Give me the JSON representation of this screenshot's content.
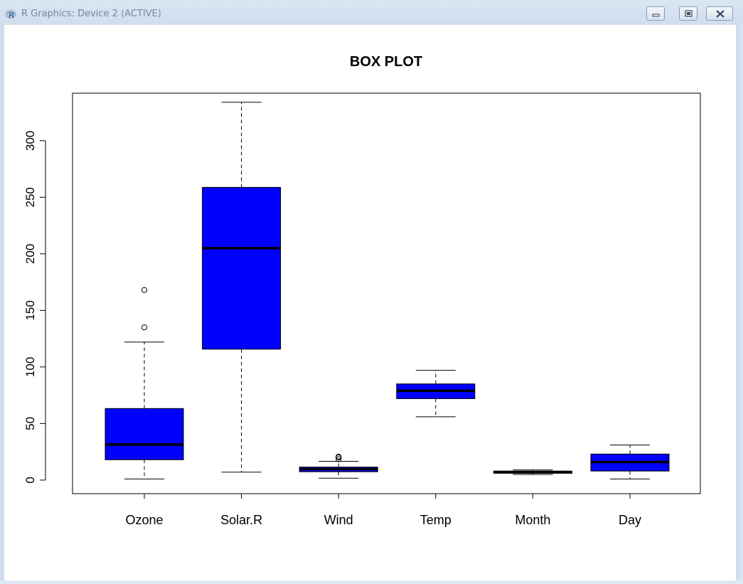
{
  "window": {
    "title": "R Graphics: Device 2 (ACTIVE)",
    "icon": "r-logo-icon",
    "controls": [
      "minimize-icon",
      "restore-icon",
      "close-icon"
    ]
  },
  "chart_data": {
    "type": "box",
    "title": "BOX PLOT",
    "xlabel": "",
    "ylabel": "",
    "ylim": [
      -12,
      342
    ],
    "yticks": [
      0,
      50,
      100,
      150,
      200,
      250,
      300
    ],
    "fill_color": "#0000ff",
    "grid": false,
    "categories": [
      "Ozone",
      "Solar.R",
      "Wind",
      "Temp",
      "Month",
      "Day"
    ],
    "boxes": [
      {
        "label": "Ozone",
        "whisker_low": 1,
        "q1": 18,
        "median": 31.5,
        "q3": 63.25,
        "whisker_high": 122,
        "outliers": [
          135,
          168
        ]
      },
      {
        "label": "Solar.R",
        "whisker_low": 7,
        "q1": 115.75,
        "median": 205,
        "q3": 258.75,
        "whisker_high": 334,
        "outliers": []
      },
      {
        "label": "Wind",
        "whisker_low": 1.7,
        "q1": 7.4,
        "median": 9.7,
        "q3": 11.5,
        "whisker_high": 16.6,
        "outliers": [
          20.1,
          18.4,
          20.7
        ]
      },
      {
        "label": "Temp",
        "whisker_low": 56,
        "q1": 72,
        "median": 79,
        "q3": 85,
        "whisker_high": 97,
        "outliers": []
      },
      {
        "label": "Month",
        "whisker_low": 5,
        "q1": 6,
        "median": 7,
        "q3": 8,
        "whisker_high": 9,
        "outliers": []
      },
      {
        "label": "Day",
        "whisker_low": 1,
        "q1": 8,
        "median": 16,
        "q3": 23,
        "whisker_high": 31,
        "outliers": []
      }
    ]
  }
}
